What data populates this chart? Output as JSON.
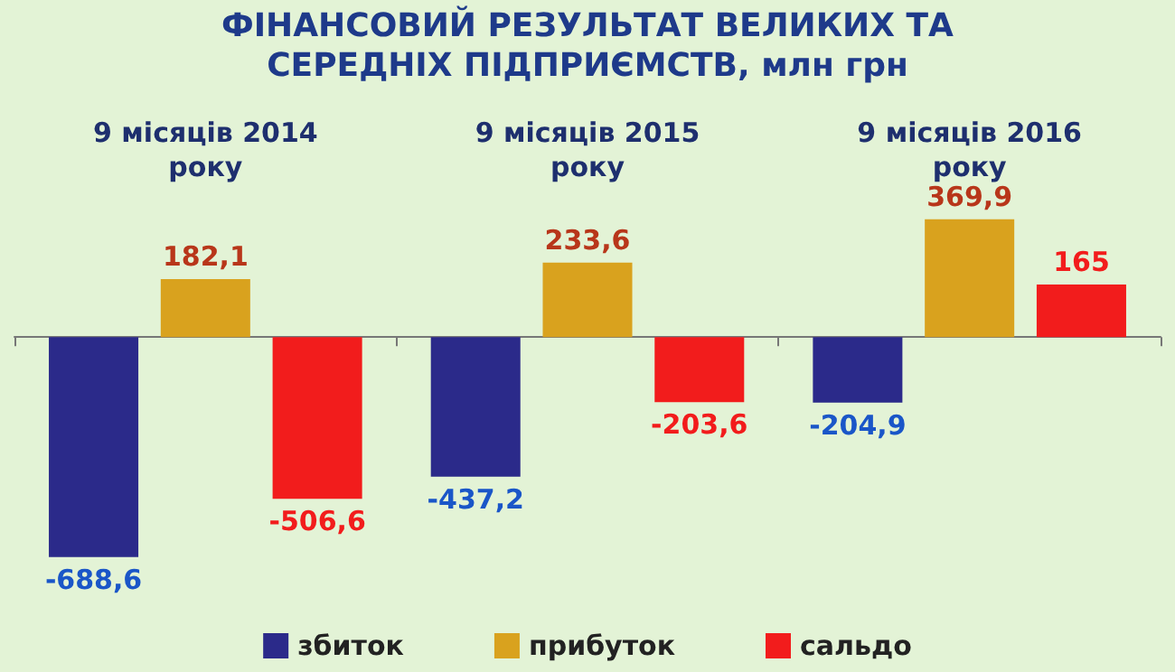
{
  "chart_data": {
    "type": "bar",
    "title": "ФІНАНСОВИЙ РЕЗУЛЬТАТ ВЕЛИКИХ ТА СЕРЕДНІХ ПІДПРИЄМСТВ, млн грн",
    "categories": [
      "9 місяців 2014\nроку",
      "9 місяців 2015\nроку",
      "9 місяців 2016\nроку"
    ],
    "series": [
      {
        "name": "збиток",
        "color": "#2b2a8a",
        "values": [
          -688.6,
          -437.2,
          -204.9
        ],
        "value_labels": [
          "-688,6",
          "-437,2",
          "-204,9"
        ]
      },
      {
        "name": "прибуток",
        "color": "#d9a21e",
        "values": [
          182.1,
          233.6,
          369.9
        ],
        "value_labels": [
          "182,1",
          "233,6",
          "369,9"
        ]
      },
      {
        "name": "сальдо",
        "color": "#f21c1c",
        "values": [
          -506.6,
          -203.6,
          165
        ],
        "value_labels": [
          "-506,6",
          "-203,6",
          "165"
        ]
      }
    ],
    "legend": "bottom"
  }
}
